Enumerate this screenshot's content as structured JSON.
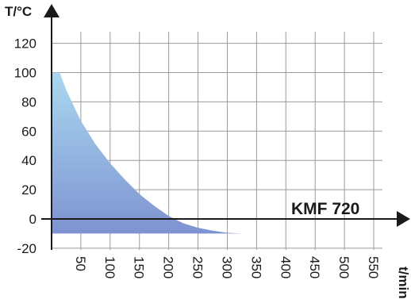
{
  "chart_data": {
    "type": "area",
    "ylabel": "T/°C",
    "xlabel": "t/min",
    "annotation": "KMF 720",
    "xlim": [
      0,
      560
    ],
    "ylim": [
      -20,
      128
    ],
    "x_ticks": [
      50,
      100,
      150,
      200,
      250,
      300,
      350,
      400,
      450,
      500,
      550
    ],
    "y_ticks": [
      -20,
      0,
      20,
      40,
      60,
      80,
      100,
      120
    ],
    "grid": true,
    "colors": {
      "fill_top": "#a9d8f0",
      "fill_bottom": "#7e93d1",
      "grid": "#9a9a9a",
      "axis": "#1a1a1a"
    },
    "series": [
      {
        "upper": {
          "x": [
            0,
            14,
            25,
            50,
            75,
            100,
            125,
            150,
            175,
            200,
            225,
            250,
            275,
            300,
            325
          ],
          "y": [
            100,
            100,
            88,
            67,
            51,
            38,
            27,
            17,
            9,
            2,
            -3,
            -6,
            -8,
            -9.5,
            -10
          ]
        },
        "lower": -10
      }
    ]
  }
}
